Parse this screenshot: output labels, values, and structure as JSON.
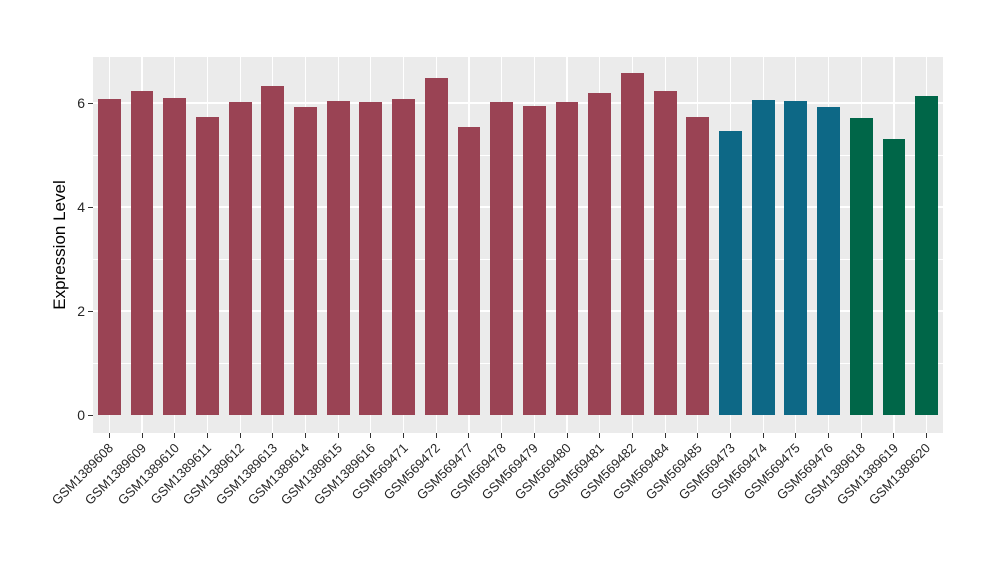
{
  "chart_data": {
    "type": "bar",
    "title": "",
    "xlabel": "",
    "ylabel": "Expression Level",
    "yticks": [
      0,
      2,
      4,
      6
    ],
    "ylim": [
      0,
      6.9
    ],
    "grid": "on",
    "legend_position": "none",
    "panel_background": "#EBEBEB",
    "gridline_color": "#FFFFFF",
    "axis_text_color": "#262626",
    "categories": [
      "GSM1389608",
      "GSM1389609",
      "GSM1389610",
      "GSM1389611",
      "GSM1389612",
      "GSM1389613",
      "GSM1389614",
      "GSM1389615",
      "GSM1389616",
      "GSM569471",
      "GSM569472",
      "GSM569477",
      "GSM569478",
      "GSM569479",
      "GSM569480",
      "GSM569481",
      "GSM569482",
      "GSM569484",
      "GSM569485",
      "GSM569473",
      "GSM569474",
      "GSM569475",
      "GSM569476",
      "GSM1389618",
      "GSM1389619",
      "GSM1389620"
    ],
    "values": [
      6.08,
      6.24,
      6.1,
      5.73,
      6.01,
      6.33,
      5.93,
      6.04,
      6.01,
      6.08,
      6.48,
      5.53,
      6.02,
      5.94,
      6.01,
      6.2,
      6.58,
      6.24,
      5.74,
      5.46,
      6.06,
      6.04,
      5.92,
      5.71,
      5.3,
      6.13
    ],
    "palette": [
      "#9A4354",
      "#0D6886",
      "#006648"
    ],
    "color_index": [
      0,
      0,
      0,
      0,
      0,
      0,
      0,
      0,
      0,
      0,
      0,
      0,
      0,
      0,
      0,
      0,
      0,
      0,
      0,
      1,
      1,
      1,
      1,
      2,
      2,
      2
    ]
  }
}
